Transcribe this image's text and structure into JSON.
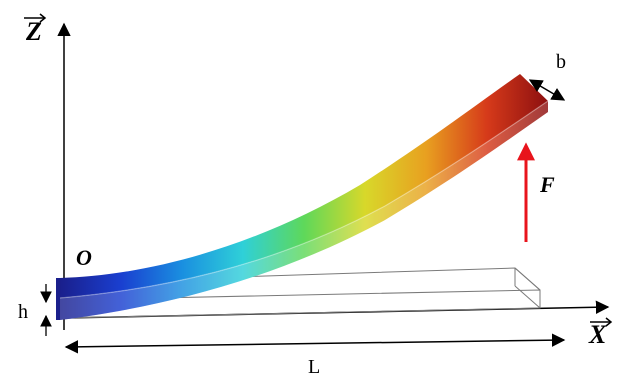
{
  "diagram": {
    "axes": {
      "z_label": "Z",
      "x_label": "X",
      "origin_label": "O"
    },
    "dimensions": {
      "height_label": "h",
      "width_label": "b",
      "length_label": "L"
    },
    "force": {
      "label": "F",
      "color": "#e8141c"
    },
    "colormap": [
      "#1a1f8c",
      "#1a3fd0",
      "#1a8fe0",
      "#2fd0d8",
      "#5ed85a",
      "#d8d82a",
      "#e8a020",
      "#d63a1a",
      "#8c0f10"
    ]
  }
}
